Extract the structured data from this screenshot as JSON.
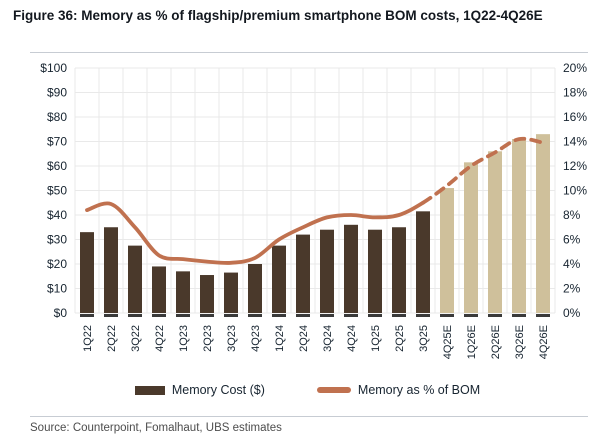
{
  "figure": {
    "title": "Figure 36: Memory as % of flagship/premium smartphone BOM costs, 1Q22-4Q26E",
    "source": "Source: Counterpoint, Fomalhaut, UBS estimates"
  },
  "legend": [
    {
      "label": "Memory Cost ($)",
      "type": "bar"
    },
    {
      "label": "Memory as % of BOM",
      "type": "line"
    }
  ],
  "colors": {
    "bar_actual": "#4a392b",
    "bar_estimate": "#cfc09b",
    "line": "#c0714f",
    "text": "#172430",
    "grid": "#e9e9e9",
    "axis_dash": "#3a3a3a"
  },
  "chart_data": {
    "type": "bar+line",
    "title": "Figure 36: Memory as % of flagship/premium smartphone BOM costs, 1Q22-4Q26E",
    "categories": [
      "1Q22",
      "2Q22",
      "3Q22",
      "4Q22",
      "1Q23",
      "2Q23",
      "3Q23",
      "4Q23",
      "1Q24",
      "2Q24",
      "3Q24",
      "4Q24",
      "1Q25",
      "2Q25",
      "3Q25",
      "4Q25E",
      "1Q26E",
      "2Q26E",
      "3Q26E",
      "4Q26E"
    ],
    "series": [
      {
        "name": "Memory Cost ($)",
        "type": "bar",
        "axis": "left",
        "values": [
          33,
          35,
          27.5,
          19,
          17,
          15.5,
          16.5,
          20,
          27.5,
          32,
          34,
          36,
          34,
          35,
          41.5,
          51,
          61.5,
          66,
          71,
          73
        ]
      },
      {
        "name": "Memory as % of BOM",
        "type": "line",
        "axis": "right",
        "values": [
          8.4,
          8.9,
          7.0,
          4.7,
          4.4,
          4.2,
          4.1,
          4.5,
          6.0,
          7.0,
          7.8,
          8.0,
          7.8,
          8.0,
          9.0,
          10.4,
          12.0,
          13.1,
          14.2,
          13.9
        ]
      }
    ],
    "estimates_from_index": 15,
    "line_dashed_from_index": 14,
    "left_axis": {
      "label": "",
      "min": 0,
      "max": 100,
      "step": 10,
      "tick_labels": [
        "$0",
        "$10",
        "$20",
        "$30",
        "$40",
        "$50",
        "$60",
        "$70",
        "$80",
        "$90",
        "$100"
      ]
    },
    "right_axis": {
      "label": "",
      "min": 0,
      "max": 20,
      "step": 2,
      "tick_labels": [
        "0%",
        "2%",
        "4%",
        "6%",
        "8%",
        "10%",
        "12%",
        "14%",
        "16%",
        "18%",
        "20%"
      ]
    },
    "grid": true,
    "legend_position": "bottom"
  }
}
